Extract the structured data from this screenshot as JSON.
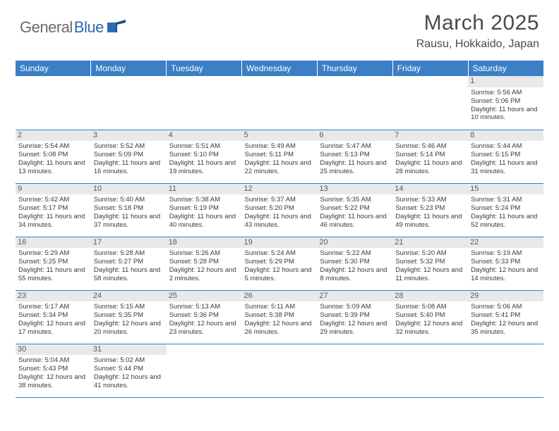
{
  "logo": {
    "part1": "General",
    "part2": "Blue"
  },
  "title": "March 2025",
  "location": "Rausu, Hokkaido, Japan",
  "colors": {
    "header_bg": "#3b7fc4",
    "header_text": "#ffffff",
    "day_num_bg": "#e9e9e9",
    "day_num_text": "#5a5a5a",
    "body_text": "#3a3a3a",
    "border": "#3b7fc4",
    "logo_gray": "#6a6a6a",
    "logo_blue": "#2a6bb5"
  },
  "layout": {
    "columns": 7,
    "rows": 6,
    "cell_font_size": 9.5,
    "header_font_size": 12,
    "title_font_size": 30,
    "location_font_size": 16
  },
  "weekdays": [
    "Sunday",
    "Monday",
    "Tuesday",
    "Wednesday",
    "Thursday",
    "Friday",
    "Saturday"
  ],
  "cells": [
    [
      null,
      null,
      null,
      null,
      null,
      null,
      {
        "n": 1,
        "sr": "5:56 AM",
        "ss": "5:06 PM",
        "dl": "11 hours and 10 minutes."
      }
    ],
    [
      {
        "n": 2,
        "sr": "5:54 AM",
        "ss": "5:08 PM",
        "dl": "11 hours and 13 minutes."
      },
      {
        "n": 3,
        "sr": "5:52 AM",
        "ss": "5:09 PM",
        "dl": "11 hours and 16 minutes."
      },
      {
        "n": 4,
        "sr": "5:51 AM",
        "ss": "5:10 PM",
        "dl": "11 hours and 19 minutes."
      },
      {
        "n": 5,
        "sr": "5:49 AM",
        "ss": "5:11 PM",
        "dl": "11 hours and 22 minutes."
      },
      {
        "n": 6,
        "sr": "5:47 AM",
        "ss": "5:13 PM",
        "dl": "11 hours and 25 minutes."
      },
      {
        "n": 7,
        "sr": "5:46 AM",
        "ss": "5:14 PM",
        "dl": "11 hours and 28 minutes."
      },
      {
        "n": 8,
        "sr": "5:44 AM",
        "ss": "5:15 PM",
        "dl": "11 hours and 31 minutes."
      }
    ],
    [
      {
        "n": 9,
        "sr": "5:42 AM",
        "ss": "5:17 PM",
        "dl": "11 hours and 34 minutes."
      },
      {
        "n": 10,
        "sr": "5:40 AM",
        "ss": "5:18 PM",
        "dl": "11 hours and 37 minutes."
      },
      {
        "n": 11,
        "sr": "5:38 AM",
        "ss": "5:19 PM",
        "dl": "11 hours and 40 minutes."
      },
      {
        "n": 12,
        "sr": "5:37 AM",
        "ss": "5:20 PM",
        "dl": "11 hours and 43 minutes."
      },
      {
        "n": 13,
        "sr": "5:35 AM",
        "ss": "5:22 PM",
        "dl": "11 hours and 46 minutes."
      },
      {
        "n": 14,
        "sr": "5:33 AM",
        "ss": "5:23 PM",
        "dl": "11 hours and 49 minutes."
      },
      {
        "n": 15,
        "sr": "5:31 AM",
        "ss": "5:24 PM",
        "dl": "11 hours and 52 minutes."
      }
    ],
    [
      {
        "n": 16,
        "sr": "5:29 AM",
        "ss": "5:25 PM",
        "dl": "11 hours and 55 minutes."
      },
      {
        "n": 17,
        "sr": "5:28 AM",
        "ss": "5:27 PM",
        "dl": "11 hours and 58 minutes."
      },
      {
        "n": 18,
        "sr": "5:26 AM",
        "ss": "5:28 PM",
        "dl": "12 hours and 2 minutes."
      },
      {
        "n": 19,
        "sr": "5:24 AM",
        "ss": "5:29 PM",
        "dl": "12 hours and 5 minutes."
      },
      {
        "n": 20,
        "sr": "5:22 AM",
        "ss": "5:30 PM",
        "dl": "12 hours and 8 minutes."
      },
      {
        "n": 21,
        "sr": "5:20 AM",
        "ss": "5:32 PM",
        "dl": "12 hours and 11 minutes."
      },
      {
        "n": 22,
        "sr": "5:19 AM",
        "ss": "5:33 PM",
        "dl": "12 hours and 14 minutes."
      }
    ],
    [
      {
        "n": 23,
        "sr": "5:17 AM",
        "ss": "5:34 PM",
        "dl": "12 hours and 17 minutes."
      },
      {
        "n": 24,
        "sr": "5:15 AM",
        "ss": "5:35 PM",
        "dl": "12 hours and 20 minutes."
      },
      {
        "n": 25,
        "sr": "5:13 AM",
        "ss": "5:36 PM",
        "dl": "12 hours and 23 minutes."
      },
      {
        "n": 26,
        "sr": "5:11 AM",
        "ss": "5:38 PM",
        "dl": "12 hours and 26 minutes."
      },
      {
        "n": 27,
        "sr": "5:09 AM",
        "ss": "5:39 PM",
        "dl": "12 hours and 29 minutes."
      },
      {
        "n": 28,
        "sr": "5:08 AM",
        "ss": "5:40 PM",
        "dl": "12 hours and 32 minutes."
      },
      {
        "n": 29,
        "sr": "5:06 AM",
        "ss": "5:41 PM",
        "dl": "12 hours and 35 minutes."
      }
    ],
    [
      {
        "n": 30,
        "sr": "5:04 AM",
        "ss": "5:43 PM",
        "dl": "12 hours and 38 minutes."
      },
      {
        "n": 31,
        "sr": "5:02 AM",
        "ss": "5:44 PM",
        "dl": "12 hours and 41 minutes."
      },
      null,
      null,
      null,
      null,
      null
    ]
  ],
  "labels": {
    "sunrise": "Sunrise:",
    "sunset": "Sunset:",
    "daylight": "Daylight:"
  }
}
